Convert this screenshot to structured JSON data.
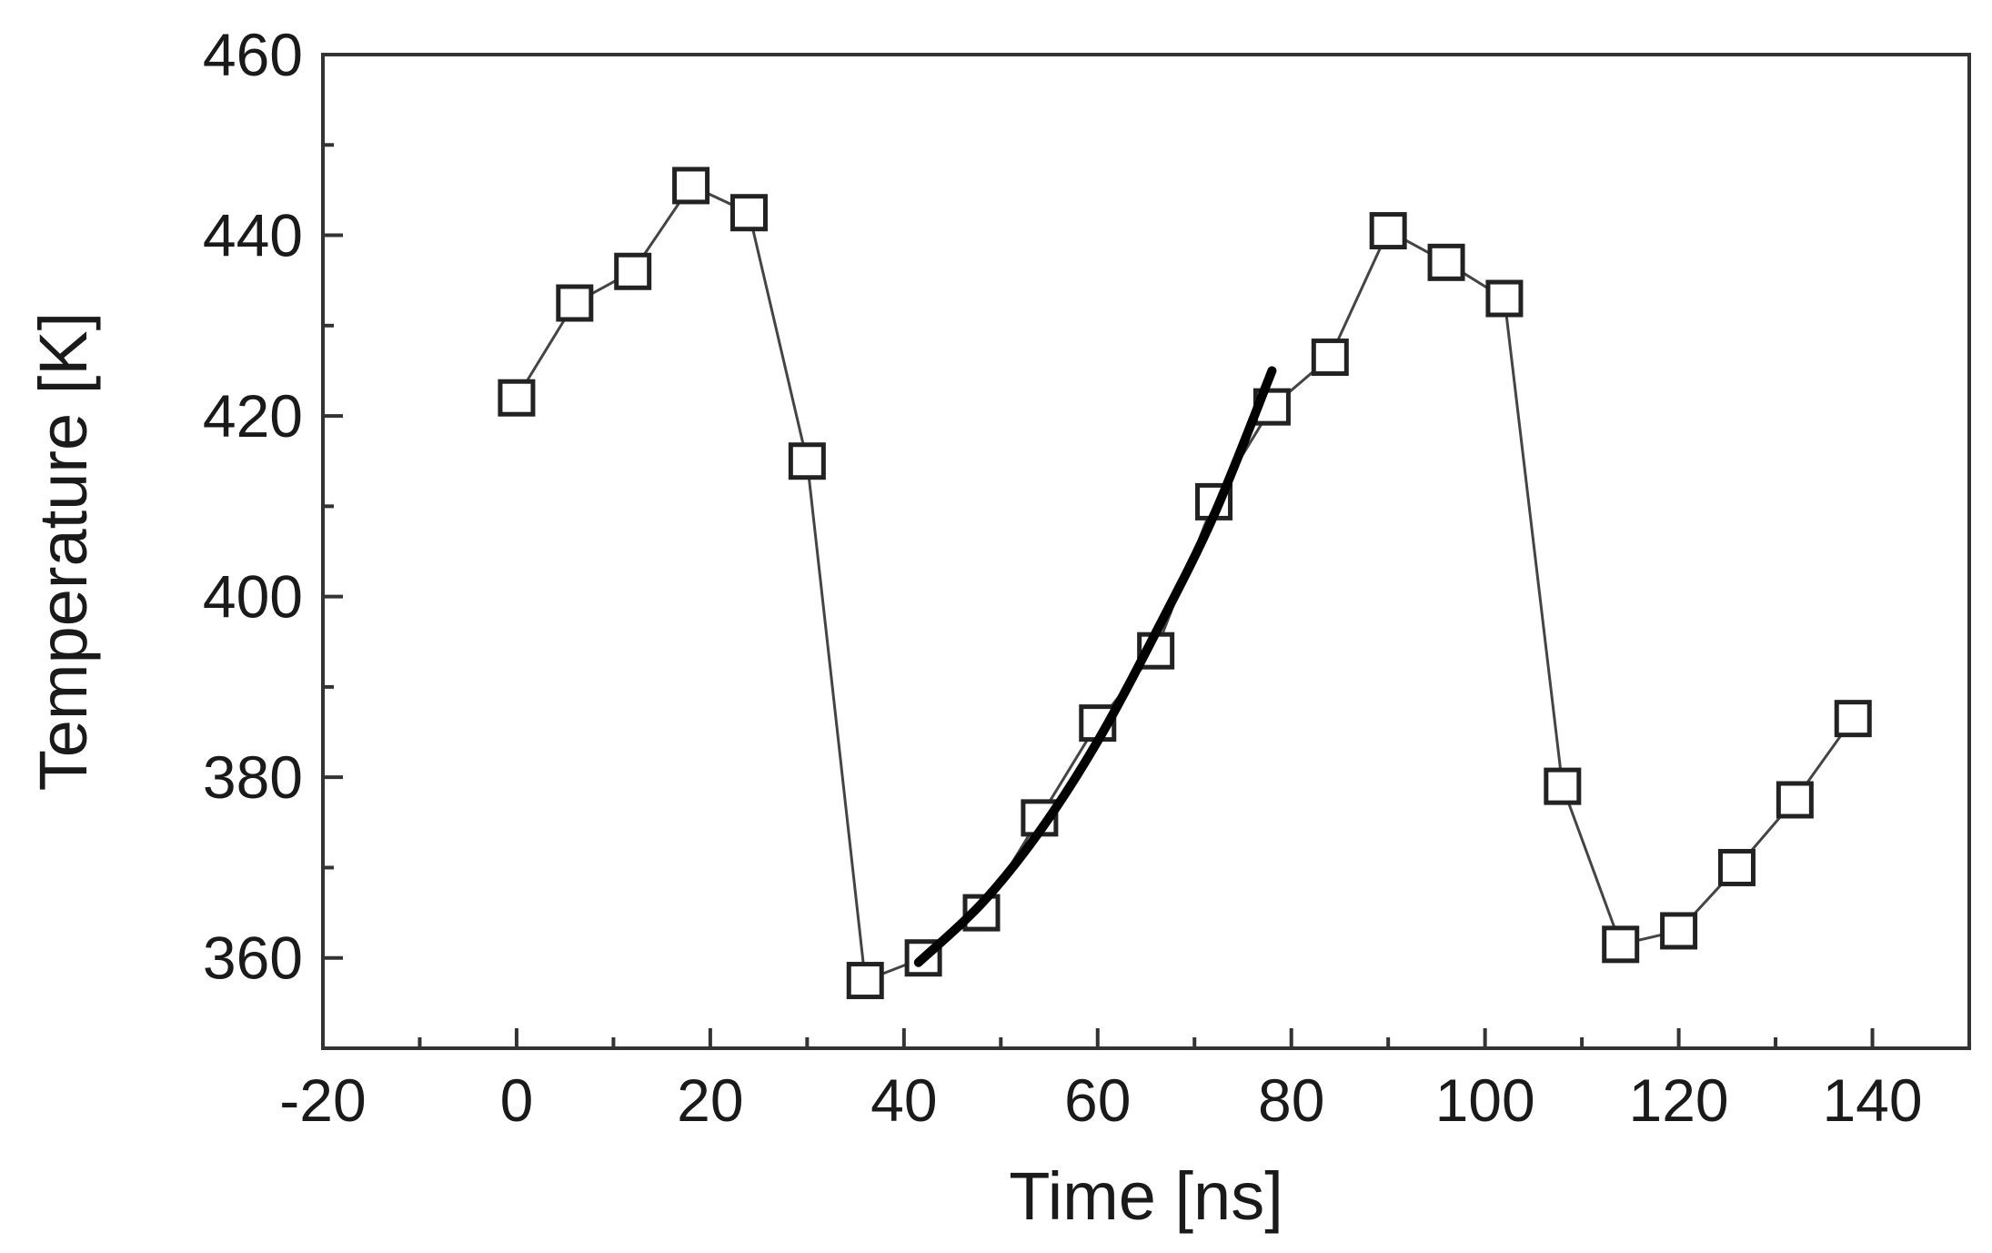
{
  "chart_data": {
    "type": "scatter",
    "xlabel": "Time [ns]",
    "ylabel": "Temperature [K]",
    "xlim": [
      -20,
      150
    ],
    "ylim": [
      350,
      460
    ],
    "x_ticks": [
      -20,
      0,
      20,
      40,
      60,
      80,
      100,
      120,
      140
    ],
    "y_ticks": [
      360,
      380,
      400,
      420,
      440,
      460
    ],
    "x_minor_step": 10,
    "y_minor_step": 10,
    "grid": false,
    "legend": "none",
    "series": [
      {
        "style": "open-square-markers-with-thin-line",
        "color": "#222222",
        "points": [
          {
            "x": 0,
            "y": 422
          },
          {
            "x": 6,
            "y": 432.5
          },
          {
            "x": 12,
            "y": 436
          },
          {
            "x": 18,
            "y": 445.5
          },
          {
            "x": 24,
            "y": 442.5
          },
          {
            "x": 30,
            "y": 415
          },
          {
            "x": 36,
            "y": 357.5
          },
          {
            "x": 42,
            "y": 360
          },
          {
            "x": 48,
            "y": 365
          },
          {
            "x": 54,
            "y": 375.5
          },
          {
            "x": 60,
            "y": 386
          },
          {
            "x": 66,
            "y": 394
          },
          {
            "x": 72,
            "y": 410.5
          },
          {
            "x": 78,
            "y": 421
          },
          {
            "x": 84,
            "y": 426.5
          },
          {
            "x": 90,
            "y": 440.5
          },
          {
            "x": 96,
            "y": 437
          },
          {
            "x": 102,
            "y": 433
          },
          {
            "x": 108,
            "y": 379
          },
          {
            "x": 114,
            "y": 361.5
          },
          {
            "x": 120,
            "y": 363
          },
          {
            "x": 126,
            "y": 370
          },
          {
            "x": 132,
            "y": 377.5
          },
          {
            "x": 138,
            "y": 386.5
          }
        ]
      },
      {
        "style": "thick-fit-curve",
        "color": "#000000",
        "points": [
          {
            "x": 41.5,
            "y": 359.5
          },
          {
            "x": 48,
            "y": 366
          },
          {
            "x": 54,
            "y": 374
          },
          {
            "x": 60,
            "y": 384
          },
          {
            "x": 66,
            "y": 396
          },
          {
            "x": 72,
            "y": 409
          },
          {
            "x": 78,
            "y": 425
          }
        ]
      }
    ]
  }
}
